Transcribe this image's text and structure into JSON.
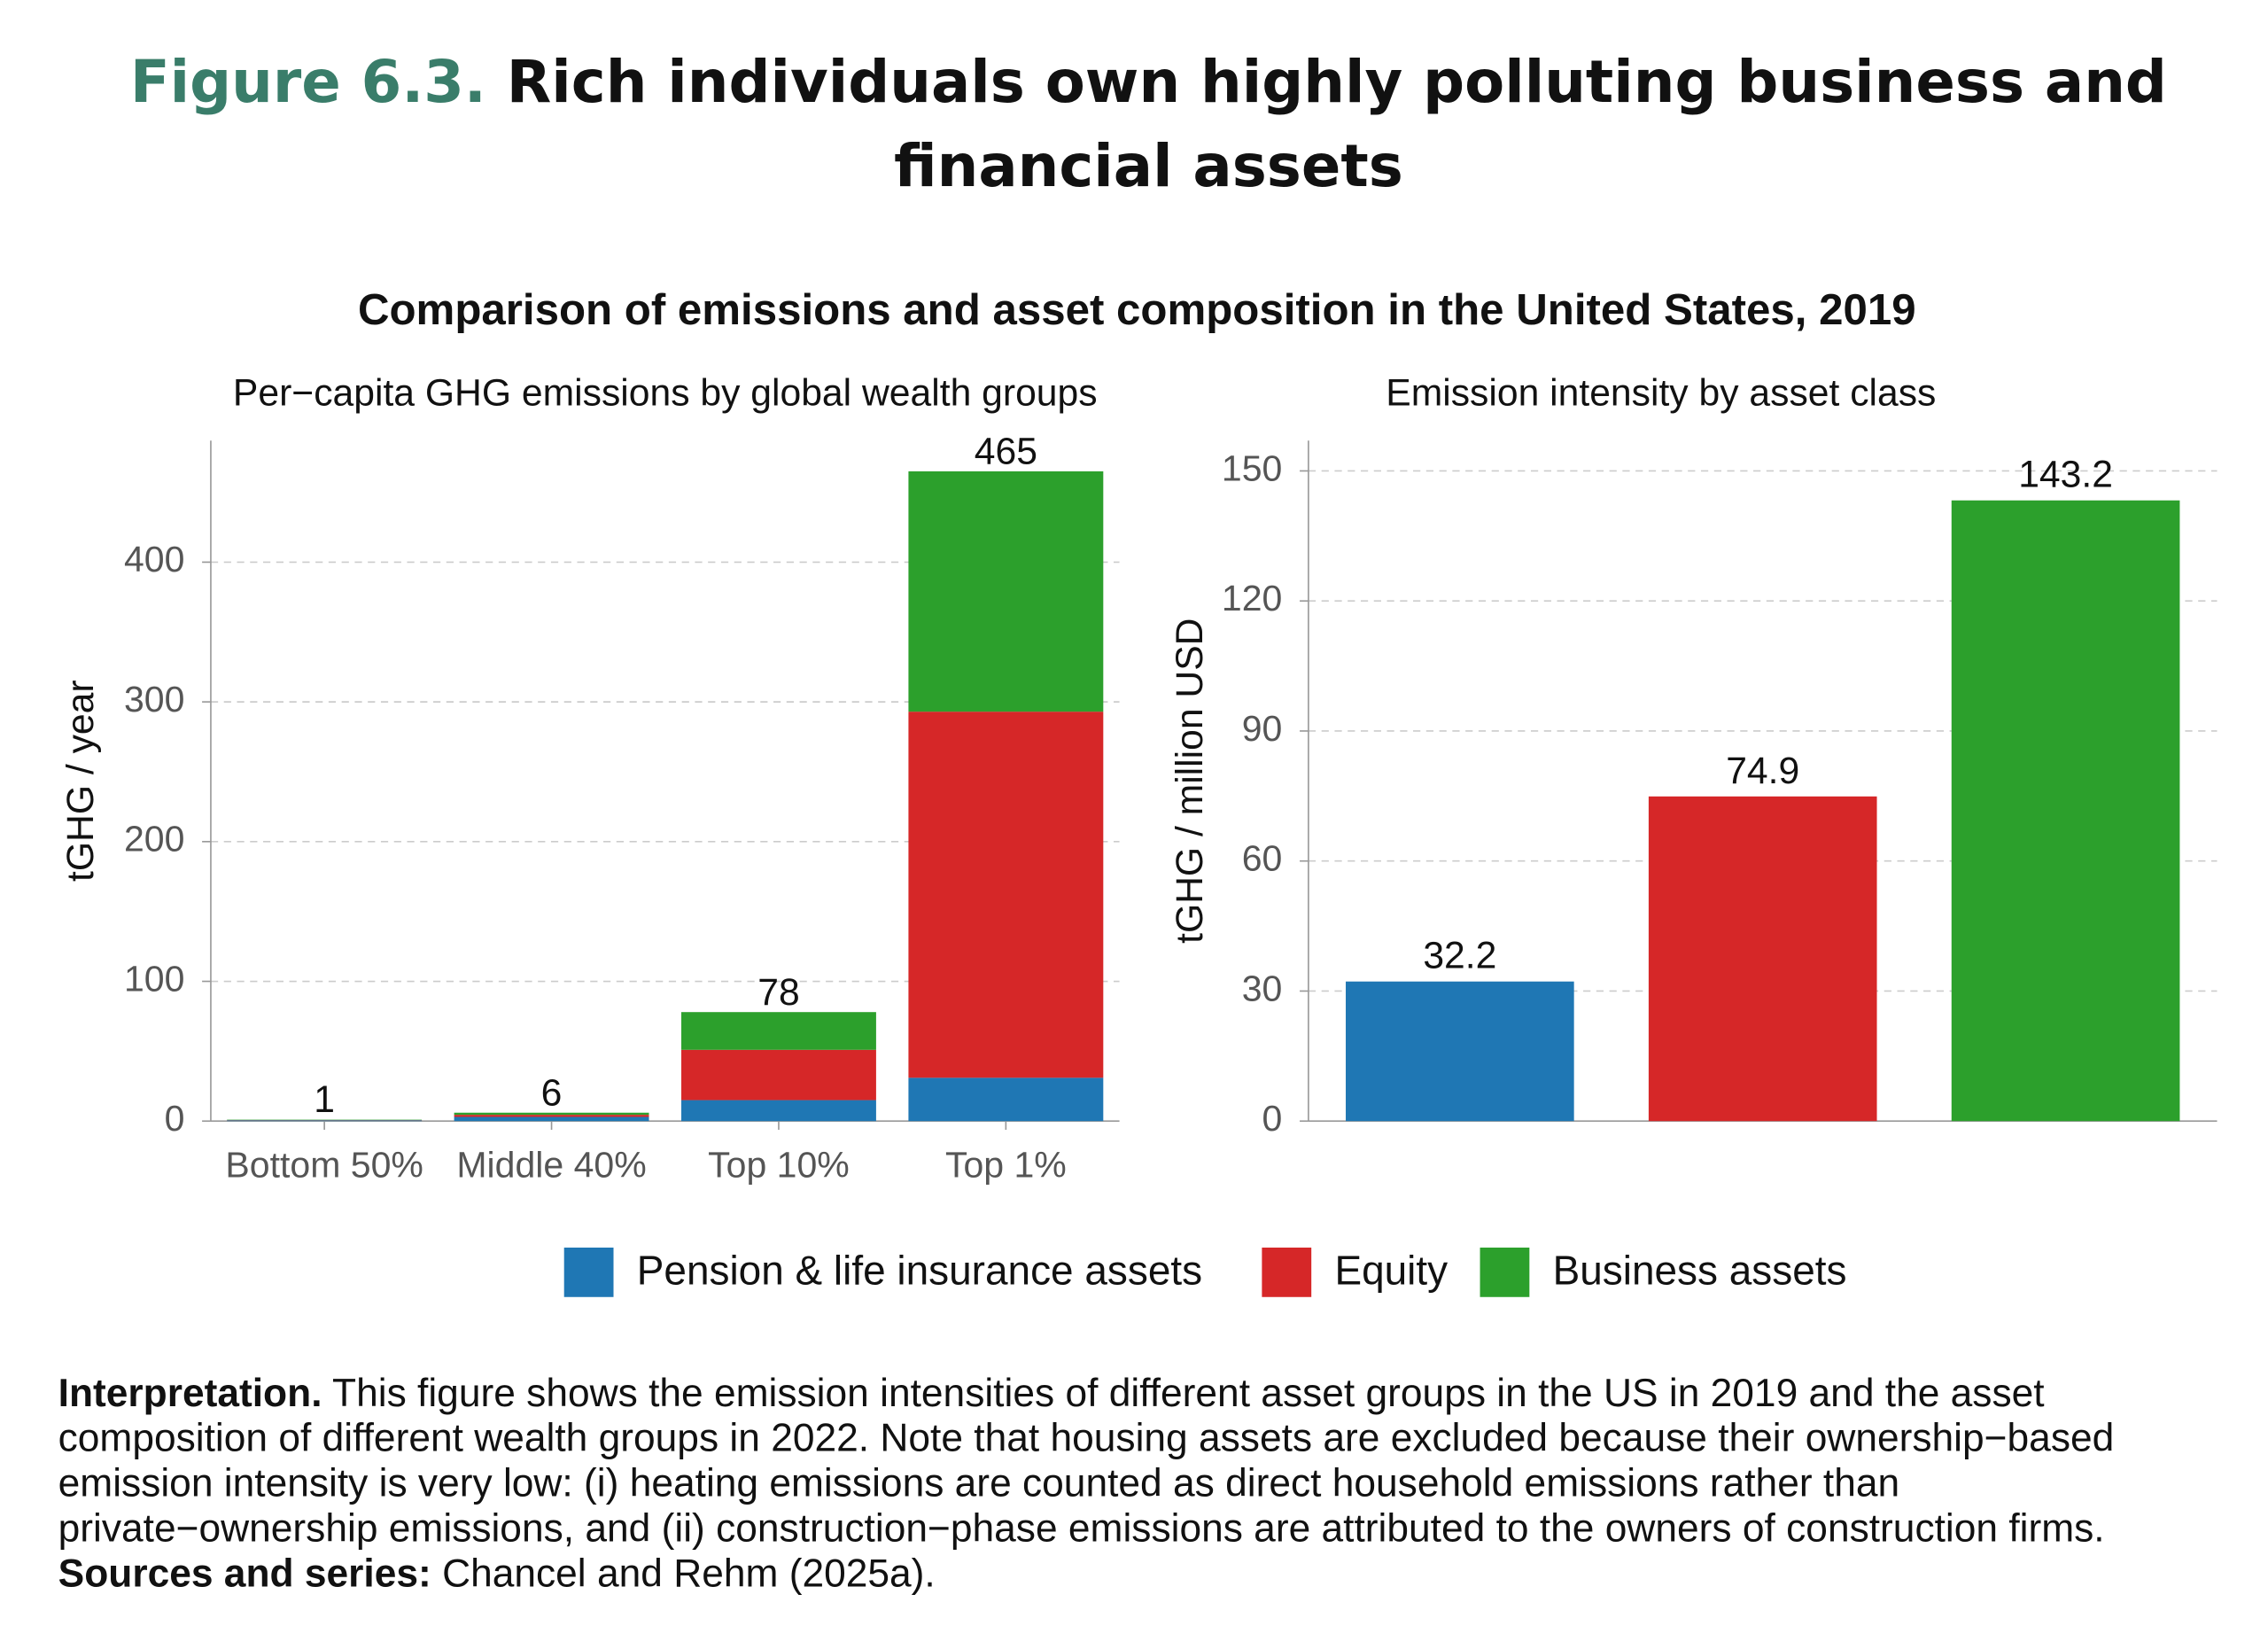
{
  "figure_label": "Figure 6.3.",
  "title": "Rich individuals own highly polluting business and financial assets",
  "heading": "Comparison of emissions and asset composition in the United States, 2019",
  "chart_data": [
    {
      "type": "bar",
      "stacked": true,
      "title": "Per−capita GHG emissions by global wealth groups",
      "ylabel": "tGHG / year",
      "categories": [
        "Bottom 50%",
        "Middle 40%",
        "Top 10%",
        "Top 1%"
      ],
      "series": [
        {
          "name": "Pension & life insurance assets",
          "color": "#1f77b4",
          "values": [
            0.5,
            3,
            15,
            31
          ]
        },
        {
          "name": "Equity",
          "color": "#d62728",
          "values": [
            0.2,
            1.5,
            36,
            262
          ]
        },
        {
          "name": "Business assets",
          "color": "#2ca02c",
          "values": [
            0.3,
            1.5,
            27,
            172
          ]
        }
      ],
      "totals": [
        1,
        6,
        78,
        465
      ],
      "ylim": [
        0,
        487
      ],
      "yticks": [
        0,
        100,
        200,
        300,
        400
      ],
      "grid": true
    },
    {
      "type": "bar",
      "title": "Emission intensity by asset class",
      "ylabel": "tGHG / million USD",
      "categories": [
        null,
        null,
        null
      ],
      "values": [
        32.2,
        74.9,
        143.2
      ],
      "colors": [
        "#1f77b4",
        "#d62728",
        "#2ca02c"
      ],
      "ylim": [
        0,
        157
      ],
      "yticks": [
        0,
        30,
        60,
        90,
        120,
        150
      ],
      "grid": true
    }
  ],
  "note": {
    "interpretation_label": "Interpretation.",
    "interpretation": "This figure shows the emission intensities of different asset groups in the US in 2019 and the asset composition of different wealth groups in 2022. Note that housing assets are excluded because their ownership−based emission intensity is very low: (i) heating emissions are counted as direct household emissions rather than private−ownership emissions, and (ii) construction−phase emissions are attributed to the owners of construction firms.",
    "sources_label": "Sources and series:",
    "sources": "Chancel and Rehm (2025a)."
  }
}
